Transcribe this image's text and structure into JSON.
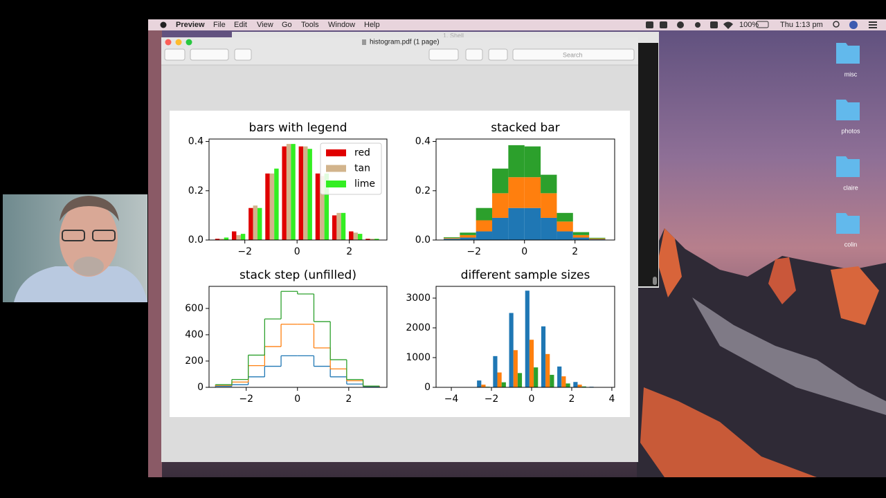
{
  "menu_bar": {
    "app": "Preview",
    "items": [
      "File",
      "Edit",
      "View",
      "Go",
      "Tools",
      "Window",
      "Help"
    ],
    "battery": "100%",
    "clock": "Thu 1:13 pm"
  },
  "window": {
    "title": "histogram.pdf (1 page)",
    "behind_title": "1. Shell",
    "search_placeholder": "Search"
  },
  "desktop_folders": [
    "misc",
    "photos",
    "claire",
    "colin"
  ],
  "chart_data": [
    {
      "type": "histogram",
      "histtype": "bar",
      "stacked": false,
      "title": "bars with legend",
      "legend": "upper right",
      "bins": [
        -3.2,
        -2.56,
        -1.92,
        -1.28,
        -0.64,
        0,
        0.64,
        1.28,
        1.92,
        2.56,
        3.2
      ],
      "series": [
        {
          "name": "red",
          "color": "#e00000",
          "values": [
            0.005,
            0.035,
            0.13,
            0.27,
            0.38,
            0.38,
            0.27,
            0.1,
            0.035,
            0.005
          ]
        },
        {
          "name": "tan",
          "color": "#d2b48c",
          "values": [
            0.005,
            0.02,
            0.14,
            0.27,
            0.39,
            0.38,
            0.26,
            0.11,
            0.03,
            0.005
          ]
        },
        {
          "name": "lime",
          "color": "#33ee22",
          "values": [
            0.01,
            0.025,
            0.13,
            0.29,
            0.39,
            0.37,
            0.27,
            0.11,
            0.025,
            0.005
          ]
        }
      ],
      "xlim": [
        -3.37,
        3.44
      ],
      "ylim": [
        0,
        0.41
      ],
      "xticks": [
        {
          "value": -2,
          "label": "−2"
        },
        0,
        2
      ],
      "yticks": [
        {
          "value": 0,
          "label": "0.0"
        },
        0.2,
        0.4
      ]
    },
    {
      "type": "histogram",
      "histtype": "bar",
      "stacked": true,
      "title": "stacked bar",
      "bins": [
        -3.2,
        -2.56,
        -1.92,
        -1.28,
        -0.64,
        0,
        0.64,
        1.28,
        1.92,
        2.56,
        3.2
      ],
      "series": [
        {
          "color": "#1f77b4",
          "values": [
            0.005,
            0.01,
            0.035,
            0.09,
            0.13,
            0.13,
            0.09,
            0.035,
            0.01,
            0.003
          ]
        },
        {
          "color": "#ff7f0e",
          "values": [
            0.003,
            0.01,
            0.045,
            0.1,
            0.125,
            0.125,
            0.1,
            0.04,
            0.01,
            0.003
          ]
        },
        {
          "color": "#2ca02c",
          "values": [
            0.003,
            0.01,
            0.05,
            0.1,
            0.13,
            0.125,
            0.075,
            0.035,
            0.012,
            0.003
          ]
        }
      ],
      "xlim": [
        -3.5,
        3.57
      ],
      "ylim": [
        0,
        0.41
      ],
      "xticks": [
        {
          "value": -2,
          "label": "−2"
        },
        0,
        2
      ],
      "yticks": [
        {
          "value": 0,
          "label": "0.0"
        },
        0.2,
        0.4
      ]
    },
    {
      "type": "histogram",
      "histtype": "step",
      "stacked": true,
      "title": "stack step (unfilled)",
      "bins": [
        -3.2,
        -2.56,
        -1.92,
        -1.28,
        -0.64,
        0,
        0.64,
        1.28,
        1.92,
        2.56,
        3.2
      ],
      "series": [
        {
          "color": "#1f77b4",
          "values": [
            8,
            20,
            80,
            160,
            240,
            240,
            160,
            80,
            25,
            5
          ]
        },
        {
          "color": "#ff7f0e",
          "values": [
            7,
            20,
            85,
            150,
            240,
            240,
            140,
            60,
            25,
            5
          ]
        },
        {
          "color": "#2ca02c",
          "values": [
            5,
            20,
            80,
            210,
            250,
            230,
            200,
            70,
            10,
            0
          ]
        }
      ],
      "xlim": [
        -3.45,
        3.49
      ],
      "ylim": [
        0,
        768
      ],
      "xticks": [
        {
          "value": -2,
          "label": "−2"
        },
        0,
        2
      ],
      "yticks": [
        0,
        200,
        400,
        600
      ]
    },
    {
      "type": "histogram",
      "histtype": "bar",
      "stacked": false,
      "title": "different sample sizes",
      "bins": [
        -3.6,
        -2.8,
        -2.0,
        -1.2,
        -0.4,
        0.4,
        1.2,
        2.0,
        2.8,
        3.6
      ],
      "series": [
        {
          "color": "#1f77b4",
          "values": [
            10,
            230,
            1050,
            2500,
            3250,
            2050,
            700,
            180,
            20
          ]
        },
        {
          "color": "#ff7f0e",
          "values": [
            5,
            90,
            500,
            1250,
            1600,
            1120,
            370,
            90,
            10
          ]
        },
        {
          "color": "#2ca02c",
          "values": [
            2,
            20,
            170,
            480,
            670,
            420,
            130,
            30,
            5
          ]
        }
      ],
      "xlim": [
        -4.76,
        4.14
      ],
      "ylim": [
        0,
        3395
      ],
      "xticks": [
        {
          "value": -4,
          "label": "−4"
        },
        {
          "value": -2,
          "label": "−2"
        },
        0,
        2,
        4
      ],
      "yticks": [
        0,
        1000,
        2000,
        3000
      ]
    }
  ]
}
